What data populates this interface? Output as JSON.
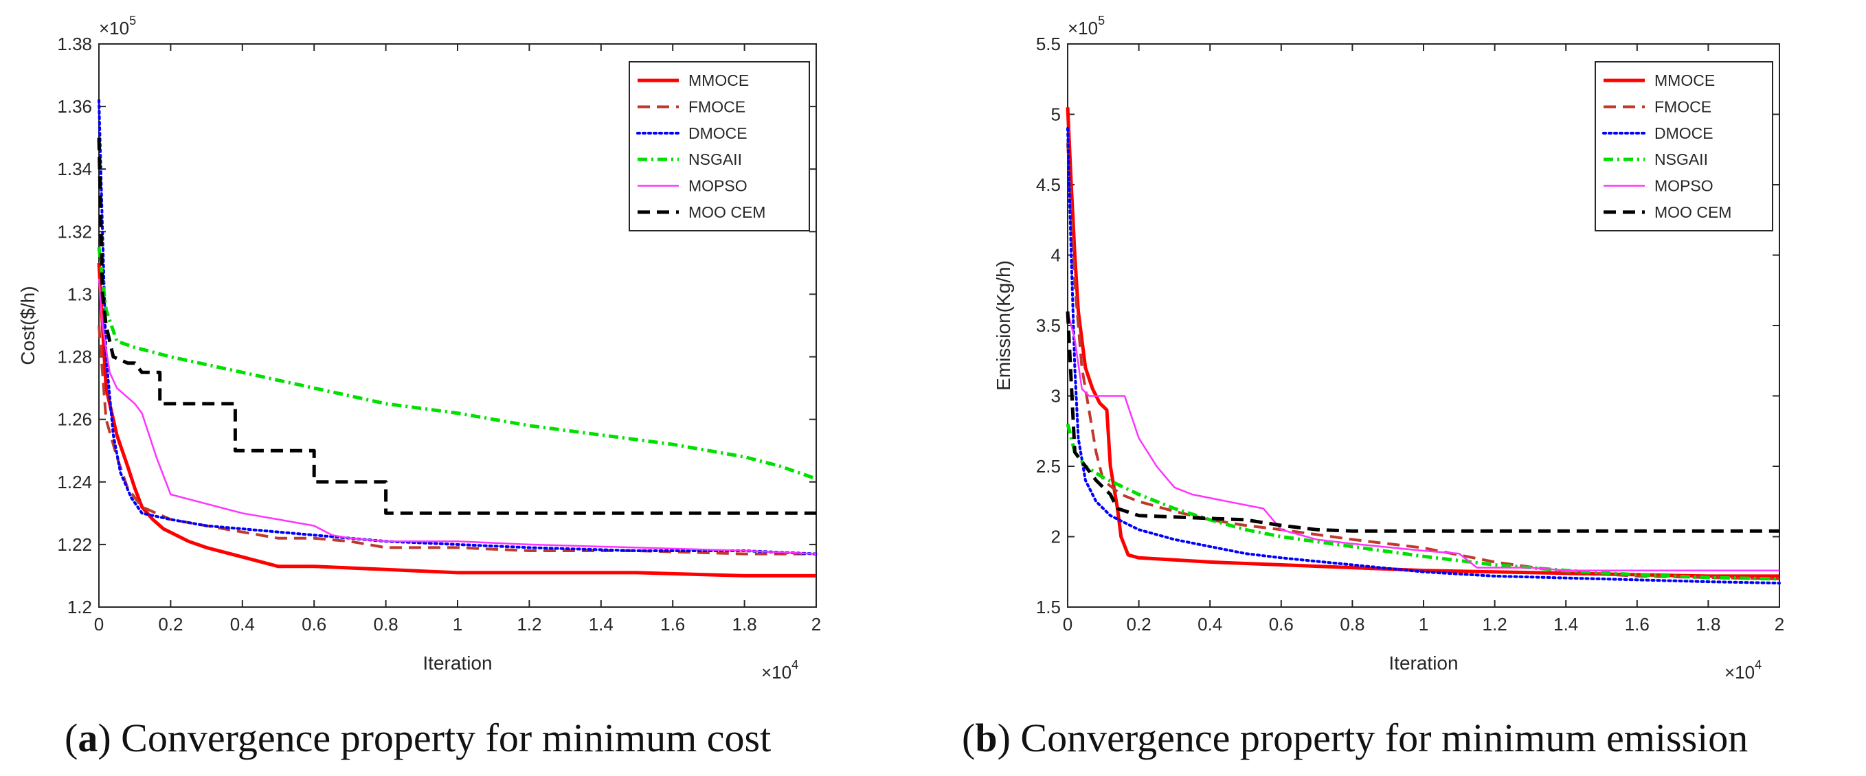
{
  "chart_data": [
    {
      "type": "line",
      "panel": "a",
      "caption_letter": "a",
      "caption_text": "Convergence property for minimum cost",
      "xlabel": "Iteration",
      "ylabel": "Cost($/h)",
      "x_exponent": "×10",
      "x_exponent_power": "4",
      "y_exponent": "×10",
      "y_exponent_power": "5",
      "xlim": [
        0,
        2
      ],
      "ylim": [
        1.2,
        1.38
      ],
      "xticks": [
        "0",
        "0.2",
        "0.4",
        "0.6",
        "0.8",
        "1",
        "1.2",
        "1.4",
        "1.6",
        "1.8",
        "2"
      ],
      "yticks": [
        "1.2",
        "1.22",
        "1.24",
        "1.26",
        "1.28",
        "1.3",
        "1.32",
        "1.34",
        "1.36",
        "1.38"
      ],
      "legend_position": "top-right",
      "series": [
        {
          "name": "MMOCE",
          "color": "#ff0000",
          "style": "solid",
          "width": 5,
          "points": [
            [
              0,
              1.31
            ],
            [
              0.02,
              1.27
            ],
            [
              0.05,
              1.255
            ],
            [
              0.08,
              1.245
            ],
            [
              0.1,
              1.238
            ],
            [
              0.12,
              1.232
            ],
            [
              0.15,
              1.228
            ],
            [
              0.18,
              1.225
            ],
            [
              0.25,
              1.221
            ],
            [
              0.3,
              1.219
            ],
            [
              0.4,
              1.216
            ],
            [
              0.5,
              1.213
            ],
            [
              0.6,
              1.213
            ],
            [
              0.8,
              1.212
            ],
            [
              1.0,
              1.211
            ],
            [
              1.2,
              1.211
            ],
            [
              1.5,
              1.211
            ],
            [
              1.8,
              1.21
            ],
            [
              2.0,
              1.21
            ]
          ]
        },
        {
          "name": "FMOCE",
          "color": "#c0392b",
          "style": "dash",
          "width": 4,
          "points": [
            [
              0,
              1.29
            ],
            [
              0.02,
              1.26
            ],
            [
              0.05,
              1.248
            ],
            [
              0.08,
              1.238
            ],
            [
              0.12,
              1.232
            ],
            [
              0.2,
              1.228
            ],
            [
              0.3,
              1.226
            ],
            [
              0.4,
              1.224
            ],
            [
              0.5,
              1.222
            ],
            [
              0.6,
              1.222
            ],
            [
              0.7,
              1.221
            ],
            [
              0.8,
              1.219
            ],
            [
              0.9,
              1.219
            ],
            [
              1.0,
              1.219
            ],
            [
              1.2,
              1.218
            ],
            [
              1.5,
              1.218
            ],
            [
              1.8,
              1.217
            ],
            [
              2.0,
              1.217
            ]
          ]
        },
        {
          "name": "DMOCE",
          "color": "#0000ff",
          "style": "dot",
          "width": 4,
          "points": [
            [
              0,
              1.362
            ],
            [
              0.01,
              1.32
            ],
            [
              0.02,
              1.28
            ],
            [
              0.04,
              1.255
            ],
            [
              0.06,
              1.243
            ],
            [
              0.09,
              1.235
            ],
            [
              0.12,
              1.23
            ],
            [
              0.2,
              1.228
            ],
            [
              0.3,
              1.226
            ],
            [
              0.4,
              1.225
            ],
            [
              0.5,
              1.224
            ],
            [
              0.6,
              1.223
            ],
            [
              0.8,
              1.221
            ],
            [
              1.0,
              1.22
            ],
            [
              1.2,
              1.219
            ],
            [
              1.5,
              1.218
            ],
            [
              1.8,
              1.218
            ],
            [
              2.0,
              1.217
            ]
          ]
        },
        {
          "name": "NSGAII",
          "color": "#00e000",
          "style": "dashdot",
          "width": 5,
          "points": [
            [
              0,
              1.315
            ],
            [
              0.02,
              1.295
            ],
            [
              0.05,
              1.285
            ],
            [
              0.1,
              1.283
            ],
            [
              0.2,
              1.28
            ],
            [
              0.4,
              1.275
            ],
            [
              0.6,
              1.27
            ],
            [
              0.8,
              1.265
            ],
            [
              1.0,
              1.262
            ],
            [
              1.2,
              1.258
            ],
            [
              1.4,
              1.255
            ],
            [
              1.6,
              1.252
            ],
            [
              1.8,
              1.248
            ],
            [
              1.9,
              1.245
            ],
            [
              2.0,
              1.241
            ]
          ]
        },
        {
          "name": "MOPSO",
          "color": "#ff33ff",
          "style": "solid",
          "width": 2.5,
          "points": [
            [
              0,
              1.305
            ],
            [
              0.01,
              1.29
            ],
            [
              0.03,
              1.275
            ],
            [
              0.05,
              1.27
            ],
            [
              0.1,
              1.265
            ],
            [
              0.12,
              1.262
            ],
            [
              0.16,
              1.248
            ],
            [
              0.2,
              1.236
            ],
            [
              0.3,
              1.233
            ],
            [
              0.4,
              1.23
            ],
            [
              0.5,
              1.228
            ],
            [
              0.6,
              1.226
            ],
            [
              0.65,
              1.223
            ],
            [
              0.7,
              1.222
            ],
            [
              0.8,
              1.221
            ],
            [
              1.0,
              1.221
            ],
            [
              1.2,
              1.22
            ],
            [
              1.5,
              1.219
            ],
            [
              1.8,
              1.218
            ],
            [
              2.0,
              1.217
            ]
          ]
        },
        {
          "name": "MOO CEM",
          "color": "#000000",
          "style": "dash",
          "width": 5,
          "points": [
            [
              0,
              1.35
            ],
            [
              0.01,
              1.3
            ],
            [
              0.02,
              1.29
            ],
            [
              0.04,
              1.28
            ],
            [
              0.08,
              1.278
            ],
            [
              0.1,
              1.278
            ],
            [
              0.12,
              1.275
            ],
            [
              0.17,
              1.275
            ],
            [
              0.17,
              1.265
            ],
            [
              0.38,
              1.265
            ],
            [
              0.38,
              1.25
            ],
            [
              0.6,
              1.25
            ],
            [
              0.6,
              1.24
            ],
            [
              0.8,
              1.24
            ],
            [
              0.8,
              1.23
            ],
            [
              2.0,
              1.23
            ]
          ]
        }
      ]
    },
    {
      "type": "line",
      "panel": "b",
      "caption_letter": "b",
      "caption_text": "Convergence property for minimum emission",
      "xlabel": "Iteration",
      "ylabel": "Emission(Kg/h)",
      "x_exponent": "×10",
      "x_exponent_power": "4",
      "y_exponent": "×10",
      "y_exponent_power": "5",
      "xlim": [
        0,
        2
      ],
      "ylim": [
        1.5,
        5.5
      ],
      "xticks": [
        "0",
        "0.2",
        "0.4",
        "0.6",
        "0.8",
        "1",
        "1.2",
        "1.4",
        "1.6",
        "1.8",
        "2"
      ],
      "yticks": [
        "1.5",
        "2",
        "2.5",
        "3",
        "3.5",
        "4",
        "4.5",
        "5",
        "5.5"
      ],
      "legend_position": "top-right",
      "series": [
        {
          "name": "MMOCE",
          "color": "#ff0000",
          "style": "solid",
          "width": 5,
          "points": [
            [
              0,
              5.05
            ],
            [
              0.01,
              4.5
            ],
            [
              0.02,
              4.0
            ],
            [
              0.03,
              3.6
            ],
            [
              0.05,
              3.2
            ],
            [
              0.07,
              3.05
            ],
            [
              0.09,
              2.95
            ],
            [
              0.11,
              2.9
            ],
            [
              0.12,
              2.5
            ],
            [
              0.14,
              2.2
            ],
            [
              0.15,
              2.0
            ],
            [
              0.17,
              1.87
            ],
            [
              0.2,
              1.85
            ],
            [
              0.4,
              1.82
            ],
            [
              0.6,
              1.8
            ],
            [
              0.8,
              1.78
            ],
            [
              1.0,
              1.76
            ],
            [
              1.2,
              1.75
            ],
            [
              1.4,
              1.74
            ],
            [
              1.6,
              1.73
            ],
            [
              1.8,
              1.72
            ],
            [
              2.0,
              1.72
            ]
          ]
        },
        {
          "name": "FMOCE",
          "color": "#c0392b",
          "style": "dash",
          "width": 4,
          "points": [
            [
              0,
              4.8
            ],
            [
              0.02,
              3.8
            ],
            [
              0.04,
              3.2
            ],
            [
              0.06,
              2.9
            ],
            [
              0.08,
              2.6
            ],
            [
              0.1,
              2.4
            ],
            [
              0.15,
              2.3
            ],
            [
              0.2,
              2.25
            ],
            [
              0.3,
              2.18
            ],
            [
              0.4,
              2.12
            ],
            [
              0.5,
              2.08
            ],
            [
              0.6,
              2.05
            ],
            [
              0.8,
              1.98
            ],
            [
              1.0,
              1.92
            ],
            [
              1.2,
              1.82
            ],
            [
              1.4,
              1.75
            ],
            [
              1.6,
              1.72
            ],
            [
              1.8,
              1.71
            ],
            [
              2.0,
              1.7
            ]
          ]
        },
        {
          "name": "DMOCE",
          "color": "#0000ff",
          "style": "dot",
          "width": 4,
          "points": [
            [
              0,
              4.9
            ],
            [
              0.01,
              4.0
            ],
            [
              0.02,
              3.2
            ],
            [
              0.03,
              2.7
            ],
            [
              0.05,
              2.4
            ],
            [
              0.08,
              2.25
            ],
            [
              0.12,
              2.15
            ],
            [
              0.2,
              2.05
            ],
            [
              0.3,
              1.98
            ],
            [
              0.4,
              1.93
            ],
            [
              0.5,
              1.88
            ],
            [
              0.6,
              1.85
            ],
            [
              0.8,
              1.8
            ],
            [
              1.0,
              1.75
            ],
            [
              1.2,
              1.72
            ],
            [
              1.5,
              1.7
            ],
            [
              1.8,
              1.68
            ],
            [
              2.0,
              1.67
            ]
          ]
        },
        {
          "name": "NSGAII",
          "color": "#00e000",
          "style": "dashdot",
          "width": 5,
          "points": [
            [
              0,
              2.8
            ],
            [
              0.02,
              2.6
            ],
            [
              0.05,
              2.5
            ],
            [
              0.1,
              2.42
            ],
            [
              0.2,
              2.3
            ],
            [
              0.3,
              2.2
            ],
            [
              0.4,
              2.12
            ],
            [
              0.5,
              2.05
            ],
            [
              0.6,
              2.0
            ],
            [
              0.8,
              1.93
            ],
            [
              1.0,
              1.86
            ],
            [
              1.2,
              1.8
            ],
            [
              1.4,
              1.76
            ],
            [
              1.6,
              1.73
            ],
            [
              1.8,
              1.71
            ],
            [
              2.0,
              1.7
            ]
          ]
        },
        {
          "name": "MOPSO",
          "color": "#ff33ff",
          "style": "solid",
          "width": 2.5,
          "points": [
            [
              0,
              3.6
            ],
            [
              0.02,
              3.4
            ],
            [
              0.04,
              3.05
            ],
            [
              0.06,
              3.0
            ],
            [
              0.16,
              3.0
            ],
            [
              0.2,
              2.7
            ],
            [
              0.25,
              2.5
            ],
            [
              0.3,
              2.35
            ],
            [
              0.35,
              2.3
            ],
            [
              0.45,
              2.25
            ],
            [
              0.55,
              2.2
            ],
            [
              0.6,
              2.05
            ],
            [
              0.7,
              1.98
            ],
            [
              0.8,
              1.95
            ],
            [
              1.0,
              1.9
            ],
            [
              1.1,
              1.88
            ],
            [
              1.15,
              1.78
            ],
            [
              1.3,
              1.78
            ],
            [
              1.4,
              1.76
            ],
            [
              1.8,
              1.76
            ],
            [
              2.0,
              1.76
            ]
          ]
        },
        {
          "name": "MOO CEM",
          "color": "#000000",
          "style": "dash",
          "width": 5,
          "points": [
            [
              0,
              3.6
            ],
            [
              0.02,
              2.6
            ],
            [
              0.05,
              2.5
            ],
            [
              0.08,
              2.4
            ],
            [
              0.12,
              2.3
            ],
            [
              0.14,
              2.2
            ],
            [
              0.2,
              2.15
            ],
            [
              0.5,
              2.12
            ],
            [
              0.6,
              2.08
            ],
            [
              0.7,
              2.05
            ],
            [
              0.8,
              2.04
            ],
            [
              2.0,
              2.04
            ]
          ]
        }
      ]
    }
  ]
}
